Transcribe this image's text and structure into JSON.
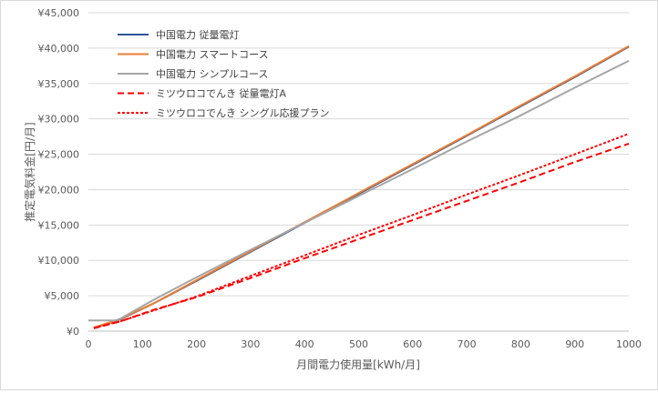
{
  "chart_data": {
    "type": "line",
    "xlabel": "月間電力使用量[kWh/月]",
    "ylabel": "推定電気料金[円/月]",
    "xlim": [
      0,
      1000
    ],
    "ylim": [
      0,
      45000
    ],
    "x_ticks": [
      0,
      100,
      200,
      300,
      400,
      500,
      600,
      700,
      800,
      900,
      1000
    ],
    "x_tick_labels": [
      "0",
      "100",
      "200",
      "300",
      "400",
      "500",
      "600",
      "700",
      "800",
      "900",
      "1000"
    ],
    "y_ticks": [
      0,
      5000,
      10000,
      15000,
      20000,
      25000,
      30000,
      35000,
      40000,
      45000
    ],
    "y_tick_labels": [
      "¥0",
      "¥5,000",
      "¥10,000",
      "¥15,000",
      "¥20,000",
      "¥25,000",
      "¥30,000",
      "¥35,000",
      "¥40,000",
      "¥45,000"
    ],
    "grid": "horizontal",
    "legend_position": "top-left",
    "series": [
      {
        "name": "中国電力 従量電灯",
        "color": "#2E5597",
        "style": "solid",
        "x": [
          10,
          60,
          120,
          200,
          300,
          400,
          500,
          600,
          700,
          800,
          900,
          1000
        ],
        "y": [
          450,
          1700,
          3900,
          7100,
          11200,
          15300,
          19400,
          23500,
          27600,
          31800,
          35900,
          40200
        ]
      },
      {
        "name": "中国電力 スマートコース",
        "color": "#ED7D31",
        "style": "solid",
        "x": [
          10,
          60,
          120,
          200,
          300,
          400,
          500,
          600,
          700,
          800,
          900,
          1000
        ],
        "y": [
          500,
          1750,
          3900,
          7200,
          11300,
          15400,
          19500,
          23600,
          27700,
          31900,
          36000,
          40300
        ]
      },
      {
        "name": "中国電力 シンプルコース",
        "color": "#A5A5A5",
        "style": "solid",
        "x": [
          0,
          50,
          60,
          120,
          200,
          300,
          400,
          500,
          600,
          700,
          800,
          900,
          1000
        ],
        "y": [
          1500,
          1500,
          1800,
          4400,
          7600,
          11500,
          15300,
          19100,
          22900,
          26800,
          30500,
          34400,
          38200
        ]
      },
      {
        "name": "ミツウロコでんき 従量電灯A",
        "color": "#FF0000",
        "style": "dashed",
        "x": [
          10,
          60,
          120,
          200,
          300,
          400,
          500,
          600,
          700,
          800,
          900,
          1000
        ],
        "y": [
          400,
          1400,
          3000,
          4800,
          7500,
          10300,
          13000,
          15700,
          18400,
          21100,
          23900,
          26500
        ]
      },
      {
        "name": "ミツウロコでんき シングル応援プラン",
        "color": "#FF0000",
        "style": "dotted",
        "x": [
          10,
          60,
          120,
          200,
          300,
          400,
          500,
          600,
          700,
          800,
          900,
          1000
        ],
        "y": [
          450,
          1400,
          2900,
          4900,
          7800,
          10700,
          13600,
          16400,
          19300,
          22100,
          25000,
          27900
        ]
      }
    ]
  }
}
